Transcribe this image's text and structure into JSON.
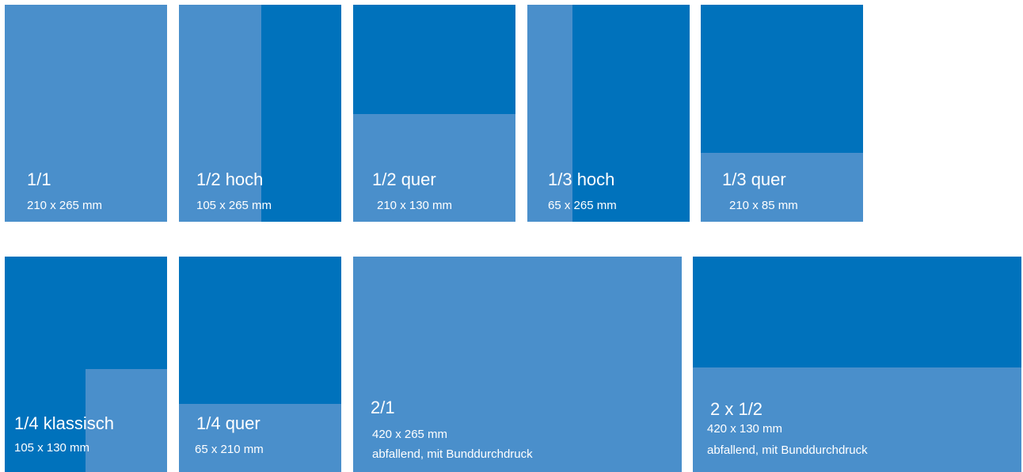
{
  "colors": {
    "light": "#4a8fcb",
    "dark": "#0072bc",
    "text": "#ffffff",
    "background": "#ffffff"
  },
  "formats": [
    {
      "title": "1/1",
      "size": "210 x 265 mm"
    },
    {
      "title": "1/2 hoch",
      "size": "105 x 265 mm"
    },
    {
      "title": "1/2 quer",
      "size": "210 x 130 mm"
    },
    {
      "title": "1/3 hoch",
      "size": "65 x 265 mm"
    },
    {
      "title": "1/3 quer",
      "size": "210 x 85 mm"
    },
    {
      "title": "1/4 klassisch",
      "size": "105 x 130 mm"
    },
    {
      "title": "1/4 quer",
      "size": "65 x 210 mm"
    },
    {
      "title": "2/1",
      "size": "420 x 265 mm",
      "note": "abfallend, mit Bunddurchdruck"
    },
    {
      "title": "2 x 1/2",
      "size": "420 x 130 mm",
      "note": "abfallend, mit Bunddurchdruck"
    }
  ]
}
